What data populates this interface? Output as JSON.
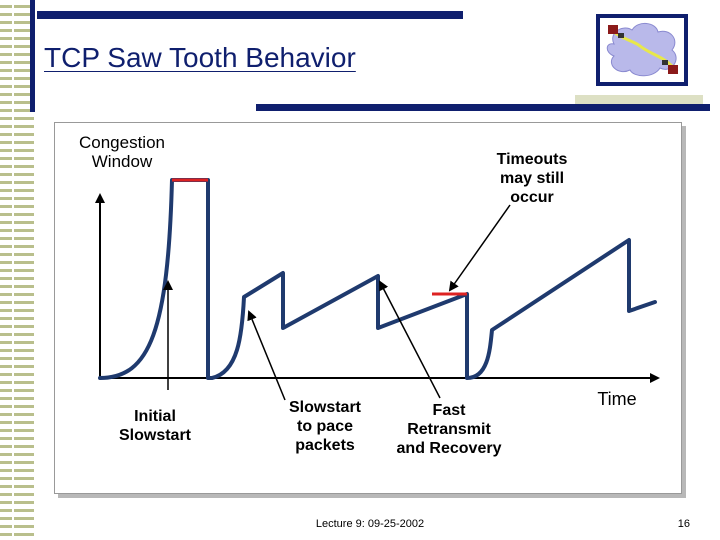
{
  "slide": {
    "title": "TCP Saw Tooth Behavior",
    "footer": "Lecture 9: 09-25-2002",
    "page_number": "16"
  },
  "diagram": {
    "y_axis_label": "Congestion\nWindow",
    "x_axis_label": "Time",
    "annotations": {
      "timeouts": "Timeouts\nmay still\noccur",
      "initial_slowstart": "Initial\nSlowstart",
      "slowstart_pace": "Slowstart\nto pace\npackets",
      "fast_retransmit": "Fast\nRetransmit\nand Recovery"
    }
  },
  "colors": {
    "navy": "#0f1f6e",
    "curve": "#1f3a6e",
    "timeout_marker": "#dd2222",
    "stripe": "#b9bf8c"
  },
  "icons": {
    "logo": "network-cloud-icon"
  }
}
